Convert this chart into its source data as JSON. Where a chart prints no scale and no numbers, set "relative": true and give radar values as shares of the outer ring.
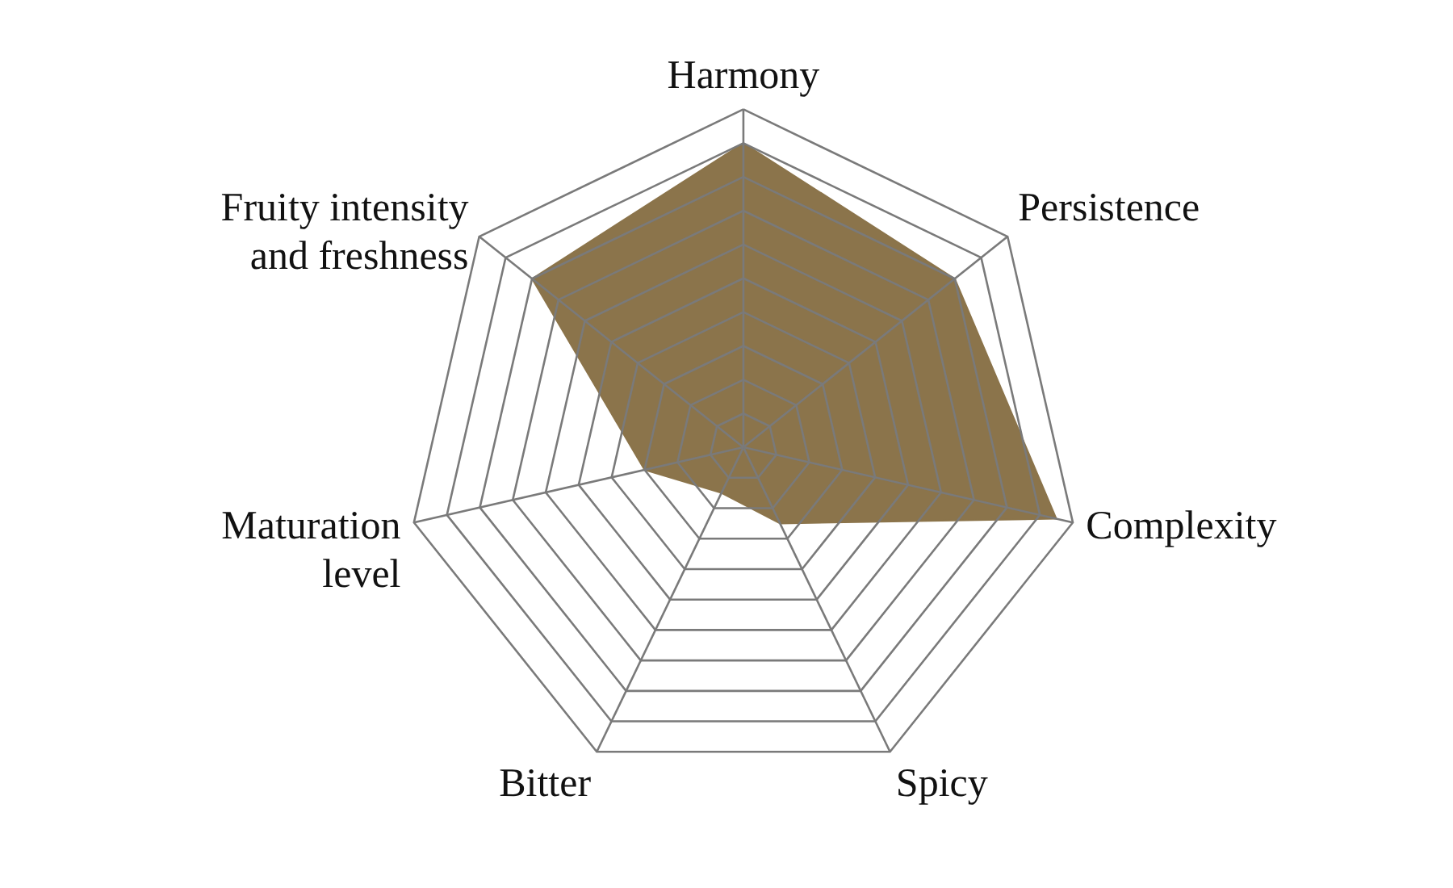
{
  "chart_data": {
    "type": "radar",
    "relative": true,
    "grid": true,
    "categories": [
      "Harmony",
      "Persistence",
      "Complexity",
      "Spicy",
      "Bitter",
      "Maturation level",
      "Fruity intensity and freshness"
    ],
    "series": [
      {
        "color": "#8b744b",
        "values": [
          0.9,
          0.8,
          0.95,
          0.25,
          0.15,
          0.3,
          0.8
        ]
      }
    ]
  }
}
